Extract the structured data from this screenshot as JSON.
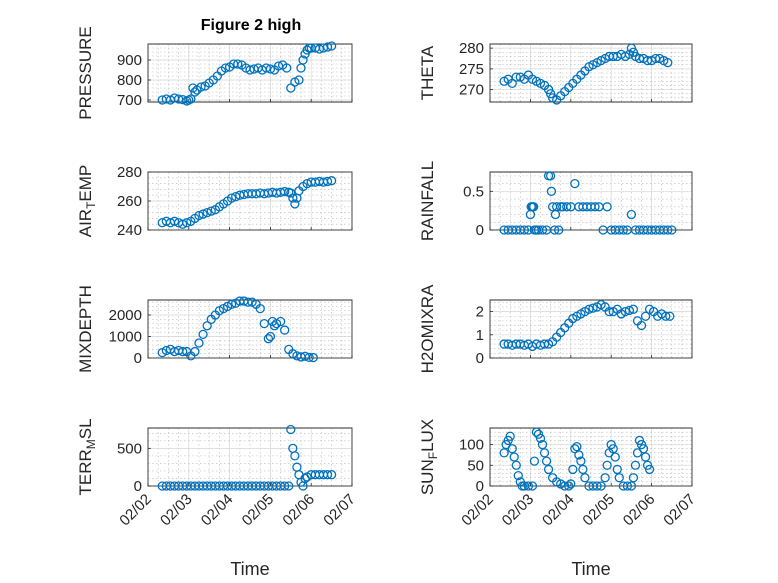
{
  "figure": {
    "title": "Figure 2 high",
    "x_axis_label": "Time",
    "x_tick_labels": [
      "02/02",
      "02/03",
      "02/04",
      "02/05",
      "02/06",
      "02/07"
    ],
    "marker_color": "#0072BD"
  },
  "chart_data": [
    {
      "type": "scatter",
      "ylabel": "PRESSURE",
      "xlabel": "",
      "ylim": [
        690,
        980
      ],
      "yticks": [
        700,
        800,
        900
      ],
      "xlim": [
        0,
        5
      ],
      "grid": true,
      "series": [
        {
          "x": [
            0.35,
            0.45,
            0.55,
            0.65,
            0.75,
            0.85,
            0.95,
            1.0,
            1.05,
            1.1,
            1.15,
            1.2,
            1.3,
            1.4,
            1.5,
            1.6,
            1.7,
            1.8,
            1.9,
            2.0,
            2.1,
            2.2,
            2.3,
            2.4,
            2.5,
            2.6,
            2.7,
            2.8,
            2.9,
            3.0,
            3.1,
            3.2,
            3.3,
            3.4,
            3.5,
            3.6,
            3.7,
            3.75,
            3.8,
            3.85,
            3.9,
            3.95,
            4.0,
            4.1,
            4.2,
            4.3,
            4.4,
            4.5
          ],
          "y": [
            700,
            705,
            700,
            710,
            705,
            702,
            695,
            700,
            705,
            760,
            740,
            750,
            765,
            770,
            785,
            800,
            820,
            845,
            860,
            865,
            880,
            880,
            875,
            860,
            850,
            855,
            860,
            850,
            860,
            855,
            850,
            870,
            875,
            860,
            760,
            790,
            800,
            860,
            900,
            930,
            950,
            960,
            960,
            960,
            955,
            960,
            965,
            970
          ]
        }
      ]
    },
    {
      "type": "scatter",
      "ylabel": "THETA",
      "xlabel": "",
      "ylim": [
        267,
        281
      ],
      "yticks": [
        270,
        275,
        280
      ],
      "xlim": [
        0,
        5
      ],
      "grid": true,
      "series": [
        {
          "x": [
            0.35,
            0.45,
            0.55,
            0.65,
            0.75,
            0.85,
            0.95,
            1.05,
            1.15,
            1.25,
            1.35,
            1.45,
            1.5,
            1.55,
            1.65,
            1.75,
            1.85,
            1.95,
            2.05,
            2.15,
            2.25,
            2.35,
            2.45,
            2.55,
            2.65,
            2.75,
            2.85,
            2.95,
            3.05,
            3.15,
            3.25,
            3.35,
            3.45,
            3.5,
            3.55,
            3.6,
            3.7,
            3.8,
            3.9,
            4.0,
            4.1,
            4.2,
            4.3,
            4.4
          ],
          "y": [
            272,
            272.5,
            271.5,
            273,
            273,
            272.5,
            273.5,
            272.5,
            272,
            271.5,
            271,
            270,
            269,
            268,
            267.5,
            268.5,
            269.5,
            270.5,
            271.5,
            272.5,
            273.5,
            274.5,
            275.5,
            276,
            276.5,
            277,
            277.5,
            278,
            278,
            278,
            278.5,
            278,
            278.5,
            280,
            279,
            278,
            277.5,
            277.5,
            277,
            277,
            277.5,
            277.5,
            277,
            276.5
          ]
        }
      ]
    },
    {
      "type": "scatter",
      "ylabel": "AIR_TEMP",
      "xlabel": "",
      "ylim": [
        240,
        280
      ],
      "yticks": [
        240,
        260,
        280
      ],
      "xlim": [
        0,
        5
      ],
      "grid": true,
      "series": [
        {
          "x": [
            0.35,
            0.45,
            0.55,
            0.65,
            0.75,
            0.85,
            0.95,
            1.05,
            1.15,
            1.25,
            1.35,
            1.45,
            1.55,
            1.65,
            1.75,
            1.85,
            1.95,
            2.05,
            2.15,
            2.25,
            2.35,
            2.45,
            2.55,
            2.65,
            2.75,
            2.85,
            2.95,
            3.05,
            3.15,
            3.25,
            3.35,
            3.45,
            3.5,
            3.55,
            3.6,
            3.65,
            3.7,
            3.8,
            3.9,
            4.0,
            4.1,
            4.2,
            4.3,
            4.4,
            4.5
          ],
          "y": [
            245,
            246,
            245,
            246,
            245,
            244,
            245,
            246,
            248,
            250,
            251,
            252,
            253,
            254,
            256,
            258,
            260,
            262,
            263,
            264,
            264.5,
            265,
            265,
            265,
            265.5,
            265,
            265.5,
            266,
            265.5,
            266,
            266.5,
            266,
            265.5,
            262,
            258,
            262,
            267,
            270,
            272,
            273,
            273,
            273.5,
            273,
            273.5,
            274
          ]
        }
      ]
    },
    {
      "type": "scatter",
      "ylabel": "RAINFALL",
      "xlabel": "",
      "ylim": [
        0,
        0.75
      ],
      "yticks": [
        0,
        0.5
      ],
      "xlim": [
        0,
        5
      ],
      "grid": true,
      "series": [
        {
          "x": [
            0.35,
            0.45,
            0.55,
            0.65,
            0.75,
            0.85,
            0.95,
            1.0,
            1.02,
            1.05,
            1.08,
            1.1,
            1.15,
            1.2,
            1.3,
            1.4,
            1.45,
            1.5,
            1.52,
            1.55,
            1.6,
            1.62,
            1.65,
            1.7,
            1.75,
            1.8,
            1.9,
            2.0,
            2.1,
            2.2,
            2.3,
            2.4,
            2.5,
            2.6,
            2.7,
            2.8,
            2.9,
            3.0,
            3.1,
            3.2,
            3.3,
            3.4,
            3.5,
            3.6,
            3.7,
            3.8,
            3.9,
            4.0,
            4.1,
            4.2,
            4.3,
            4.4,
            4.5
          ],
          "y": [
            0,
            0,
            0,
            0,
            0,
            0,
            0,
            0.2,
            0.3,
            0.3,
            0.3,
            0,
            0,
            0,
            0,
            0,
            0.7,
            0.7,
            0.5,
            0.3,
            0,
            0.2,
            0.3,
            0,
            0.3,
            0.3,
            0.3,
            0.3,
            0.6,
            0.3,
            0.3,
            0.3,
            0.3,
            0.3,
            0.3,
            0,
            0.3,
            0,
            0,
            0,
            0,
            0,
            0.2,
            0,
            0,
            0,
            0,
            0,
            0,
            0,
            0,
            0,
            0
          ]
        }
      ]
    },
    {
      "type": "scatter",
      "ylabel": "MIXDEPTH",
      "xlabel": "",
      "ylim": [
        0,
        2700
      ],
      "yticks": [
        0,
        1000,
        2000
      ],
      "xlim": [
        0,
        5
      ],
      "grid": true,
      "series": [
        {
          "x": [
            0.35,
            0.45,
            0.55,
            0.65,
            0.75,
            0.85,
            0.95,
            1.05,
            1.15,
            1.25,
            1.35,
            1.45,
            1.55,
            1.65,
            1.75,
            1.85,
            1.95,
            2.05,
            2.15,
            2.25,
            2.35,
            2.45,
            2.55,
            2.65,
            2.75,
            2.85,
            2.95,
            3.0,
            3.05,
            3.1,
            3.15,
            3.25,
            3.35,
            3.45,
            3.55,
            3.65,
            3.75,
            3.85,
            3.95,
            4.05
          ],
          "y": [
            250,
            350,
            400,
            300,
            350,
            300,
            300,
            100,
            300,
            700,
            1100,
            1500,
            1800,
            2000,
            2200,
            2300,
            2400,
            2500,
            2550,
            2650,
            2650,
            2600,
            2600,
            2500,
            2300,
            1600,
            900,
            1000,
            1700,
            1500,
            1600,
            1700,
            1300,
            400,
            200,
            100,
            50,
            80,
            30,
            20
          ]
        }
      ]
    },
    {
      "type": "scatter",
      "ylabel": "H2OMIXRA",
      "xlabel": "",
      "ylim": [
        0,
        2.5
      ],
      "yticks": [
        0,
        1,
        2
      ],
      "xlim": [
        0,
        5
      ],
      "grid": true,
      "series": [
        {
          "x": [
            0.35,
            0.45,
            0.55,
            0.65,
            0.75,
            0.85,
            0.95,
            1.05,
            1.15,
            1.25,
            1.35,
            1.45,
            1.55,
            1.65,
            1.75,
            1.85,
            1.95,
            2.05,
            2.15,
            2.25,
            2.35,
            2.45,
            2.55,
            2.65,
            2.75,
            2.85,
            2.95,
            3.05,
            3.15,
            3.25,
            3.35,
            3.45,
            3.55,
            3.65,
            3.75,
            3.85,
            3.95,
            4.05,
            4.15,
            4.25,
            4.35,
            4.45
          ],
          "y": [
            0.6,
            0.6,
            0.55,
            0.6,
            0.6,
            0.55,
            0.6,
            0.5,
            0.6,
            0.55,
            0.6,
            0.6,
            0.7,
            0.9,
            1.1,
            1.3,
            1.5,
            1.7,
            1.8,
            1.9,
            2.0,
            2.1,
            2.15,
            2.2,
            2.3,
            2.2,
            2.0,
            2.0,
            2.1,
            1.9,
            2.0,
            2.05,
            2.1,
            1.6,
            1.4,
            1.8,
            2.1,
            2.0,
            1.8,
            1.9,
            1.8,
            1.8
          ]
        }
      ]
    },
    {
      "type": "scatter",
      "ylabel": "TERR_MSL",
      "xlabel": "",
      "ylim": [
        0,
        770
      ],
      "yticks": [
        0,
        500
      ],
      "xlim": [
        0,
        5
      ],
      "grid": true,
      "series": [
        {
          "x": [
            0.35,
            0.45,
            0.55,
            0.65,
            0.75,
            0.85,
            0.95,
            1.05,
            1.15,
            1.25,
            1.35,
            1.45,
            1.55,
            1.65,
            1.75,
            1.85,
            1.95,
            2.05,
            2.15,
            2.25,
            2.35,
            2.45,
            2.55,
            2.65,
            2.75,
            2.85,
            2.95,
            3.05,
            3.15,
            3.25,
            3.35,
            3.45,
            3.5,
            3.55,
            3.6,
            3.65,
            3.7,
            3.75,
            3.8,
            3.85,
            3.9,
            4.0,
            4.1,
            4.2,
            4.3,
            4.4,
            4.5
          ],
          "y": [
            0,
            0,
            0,
            0,
            0,
            0,
            0,
            0,
            0,
            0,
            0,
            0,
            0,
            0,
            0,
            0,
            0,
            0,
            0,
            0,
            0,
            0,
            0,
            0,
            0,
            0,
            0,
            0,
            0,
            0,
            0,
            0,
            750,
            500,
            400,
            250,
            150,
            50,
            0,
            100,
            120,
            150,
            150,
            150,
            150,
            150,
            150
          ]
        }
      ]
    },
    {
      "type": "scatter",
      "ylabel": "SUN_FLUX",
      "xlabel": "",
      "ylim": [
        0,
        140
      ],
      "yticks": [
        0,
        50,
        100
      ],
      "xlim": [
        0,
        5
      ],
      "grid": true,
      "series": [
        {
          "x": [
            0.35,
            0.4,
            0.45,
            0.5,
            0.55,
            0.6,
            0.65,
            0.7,
            0.75,
            0.8,
            0.85,
            0.95,
            1.05,
            1.1,
            1.15,
            1.2,
            1.25,
            1.3,
            1.35,
            1.4,
            1.45,
            1.55,
            1.65,
            1.75,
            1.85,
            1.95,
            2.0,
            2.05,
            2.1,
            2.15,
            2.2,
            2.25,
            2.3,
            2.35,
            2.45,
            2.55,
            2.65,
            2.75,
            2.85,
            2.9,
            2.95,
            3.0,
            3.05,
            3.1,
            3.15,
            3.2,
            3.3,
            3.4,
            3.5,
            3.55,
            3.6,
            3.65,
            3.7,
            3.75,
            3.8,
            3.85,
            3.9,
            3.95
          ],
          "y": [
            80,
            100,
            110,
            120,
            90,
            70,
            50,
            25,
            10,
            0,
            0,
            0,
            0,
            60,
            130,
            125,
            115,
            100,
            80,
            60,
            40,
            20,
            10,
            5,
            0,
            0,
            5,
            40,
            90,
            95,
            75,
            60,
            40,
            20,
            0,
            0,
            0,
            0,
            20,
            50,
            80,
            100,
            90,
            70,
            40,
            20,
            0,
            0,
            0,
            20,
            50,
            80,
            110,
            100,
            90,
            70,
            50,
            40
          ]
        }
      ]
    }
  ]
}
